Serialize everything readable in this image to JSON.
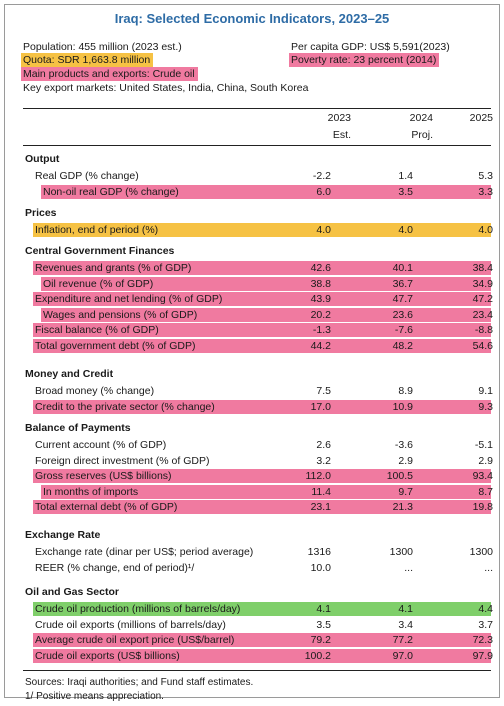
{
  "title": "Iraq: Selected Economic Indicators, 2023–25",
  "colors": {
    "title": "#2e6ca6",
    "pink": "#f07aa0",
    "yellow": "#f6c244",
    "green": "#7fcf6a"
  },
  "info": {
    "population": "Population: 455 million (2023 est.)",
    "quota": "Quota: SDR 1,663.8 million",
    "products": "Main products and exports: Crude oil",
    "markets": "Key export markets: United States, India, China, South Korea",
    "gdp_per_capita": "Per capita GDP: US$ 5,591(2023)",
    "poverty": "Poverty rate: 23 percent (2014)"
  },
  "columns": [
    {
      "year": "2023",
      "sub": "Est."
    },
    {
      "year": "2024",
      "sub": "Proj."
    },
    {
      "year": "2025",
      "sub": ""
    }
  ],
  "sections": [
    {
      "title": "Output",
      "rows": [
        {
          "label": "Real GDP (% change)",
          "indent": 1,
          "values": [
            "-2.2",
            "1.4",
            "5.3"
          ],
          "hl": ""
        },
        {
          "label": "Non-oil real GDP (% change)",
          "indent": 2,
          "values": [
            "6.0",
            "3.5",
            "3.3"
          ],
          "hl": "pink"
        }
      ]
    },
    {
      "title": "Prices",
      "rows": [
        {
          "label": "Inflation, end of period (%)",
          "indent": 1,
          "values": [
            "4.0",
            "4.0",
            "4.0"
          ],
          "hl": "yellow"
        }
      ]
    },
    {
      "title": "Central Government Finances",
      "rows": [
        {
          "label": "Revenues and grants (% of GDP)",
          "indent": 1,
          "values": [
            "42.6",
            "40.1",
            "38.4"
          ],
          "hl": "pink"
        },
        {
          "label": "Oil revenue (% of GDP)",
          "indent": 2,
          "values": [
            "38.8",
            "36.7",
            "34.9"
          ],
          "hl": "pink"
        },
        {
          "label": "Expenditure and net lending (% of GDP)",
          "indent": 1,
          "values": [
            "43.9",
            "47.7",
            "47.2"
          ],
          "hl": "pink"
        },
        {
          "label": "Wages and pensions (% of GDP)",
          "indent": 2,
          "values": [
            "20.2",
            "23.6",
            "23.4"
          ],
          "hl": "pink"
        },
        {
          "label": "Fiscal balance (% of GDP)",
          "indent": 1,
          "values": [
            "-1.3",
            "-7.6",
            "-8.8"
          ],
          "hl": "pink"
        },
        {
          "label": "Total government debt (% of GDP)",
          "indent": 1,
          "values": [
            "44.2",
            "48.2",
            "54.6"
          ],
          "hl": "pink"
        }
      ]
    },
    {
      "title": "Money and Credit",
      "rows": [
        {
          "label": "Broad money (% change)",
          "indent": 1,
          "values": [
            "7.5",
            "8.9",
            "9.1"
          ],
          "hl": ""
        },
        {
          "label": "Credit to the private sector (% change)",
          "indent": 1,
          "values": [
            "17.0",
            "10.9",
            "9.3"
          ],
          "hl": "pink"
        }
      ]
    },
    {
      "title": "Balance of Payments",
      "rows": [
        {
          "label": "Current account (% of GDP)",
          "indent": 1,
          "values": [
            "2.6",
            "-3.6",
            "-5.1"
          ],
          "hl": ""
        },
        {
          "label": "Foreign direct investment (% of GDP)",
          "indent": 1,
          "values": [
            "3.2",
            "2.9",
            "2.9"
          ],
          "hl": ""
        },
        {
          "label": "Gross reserves (US$ billions)",
          "indent": 1,
          "values": [
            "112.0",
            "100.5",
            "93.4"
          ],
          "hl": "pink"
        },
        {
          "label": "In months of imports",
          "indent": 2,
          "values": [
            "11.4",
            "9.7",
            "8.7"
          ],
          "hl": "pink"
        },
        {
          "label": "Total external debt (% of GDP)",
          "indent": 1,
          "values": [
            "23.1",
            "21.3",
            "19.8"
          ],
          "hl": "pink"
        }
      ]
    },
    {
      "title": "Exchange Rate",
      "rows": [
        {
          "label": "Exchange rate (dinar per US$; period average)",
          "indent": 1,
          "values": [
            "1316",
            "1300",
            "1300"
          ],
          "hl": ""
        },
        {
          "label": "REER (% change, end of period)¹/",
          "indent": 1,
          "values": [
            "10.0",
            "...",
            "..."
          ],
          "hl": ""
        }
      ]
    },
    {
      "title": "Oil and Gas Sector",
      "rows": [
        {
          "label": "Crude oil production (millions of barrels/day)",
          "indent": 1,
          "values": [
            "4.1",
            "4.1",
            "4.4"
          ],
          "hl": "green"
        },
        {
          "label": "Crude oil exports (millions of barrels/day)",
          "indent": 1,
          "values": [
            "3.5",
            "3.4",
            "3.7"
          ],
          "hl": ""
        },
        {
          "label": "Average crude oil export price (US$/barrel)",
          "indent": 1,
          "values": [
            "79.2",
            "77.2",
            "72.3"
          ],
          "hl": "pink"
        },
        {
          "label": "Crude oil exports (US$ billions)",
          "indent": 1,
          "values": [
            "100.2",
            "97.0",
            "97.9"
          ],
          "hl": "pink"
        }
      ]
    }
  ],
  "footnotes": {
    "sources": "Sources: Iraqi authorities; and Fund staff estimates.",
    "note1": "1/ Positive means appreciation."
  }
}
